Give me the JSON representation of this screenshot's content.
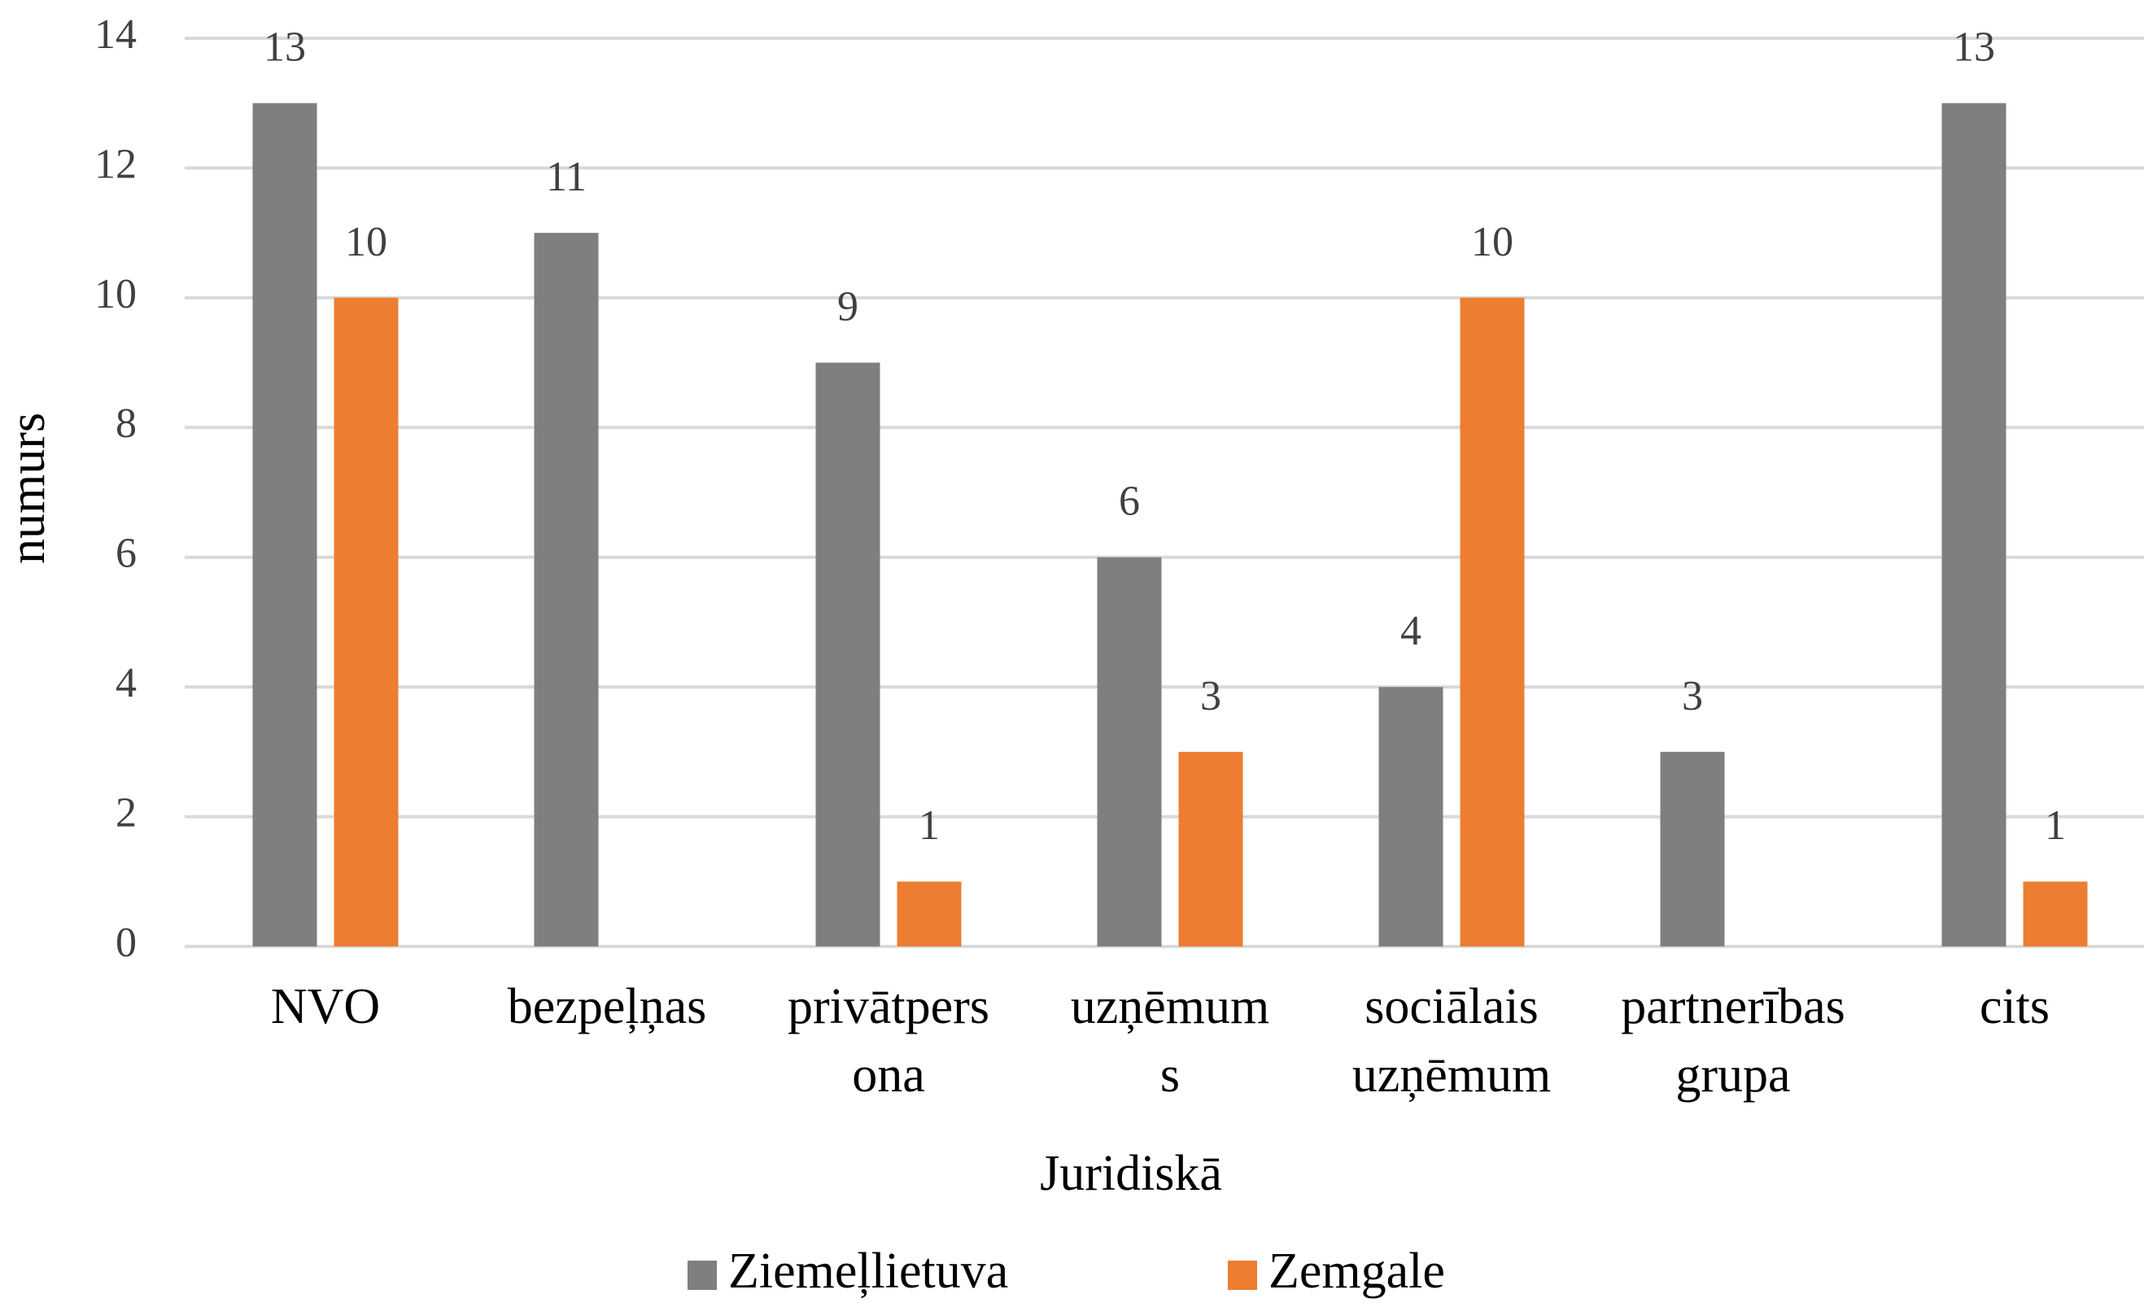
{
  "chart_data": {
    "type": "bar",
    "x_label": "Juridiskā",
    "y_label": "numurs",
    "categories": [
      [
        "NVO"
      ],
      [
        "bezpeļņas"
      ],
      [
        "privātpers",
        "ona"
      ],
      [
        "uzņēmum",
        "s"
      ],
      [
        "sociālais",
        "uzņēmum"
      ],
      [
        "partnerības",
        "grupa"
      ],
      [
        "cits"
      ]
    ],
    "series": [
      {
        "name": "Ziemeļlietuva",
        "color": "#7f7f7f",
        "values": [
          13,
          11,
          9,
          6,
          4,
          3,
          13
        ]
      },
      {
        "name": "Zemgale",
        "color": "#ed7d31",
        "values": [
          10,
          null,
          1,
          3,
          10,
          null,
          1
        ]
      }
    ],
    "ylim": [
      0,
      14
    ],
    "yticks": [
      0,
      2,
      4,
      6,
      8,
      10,
      12,
      14
    ],
    "grid": true,
    "legend": "bottom"
  }
}
